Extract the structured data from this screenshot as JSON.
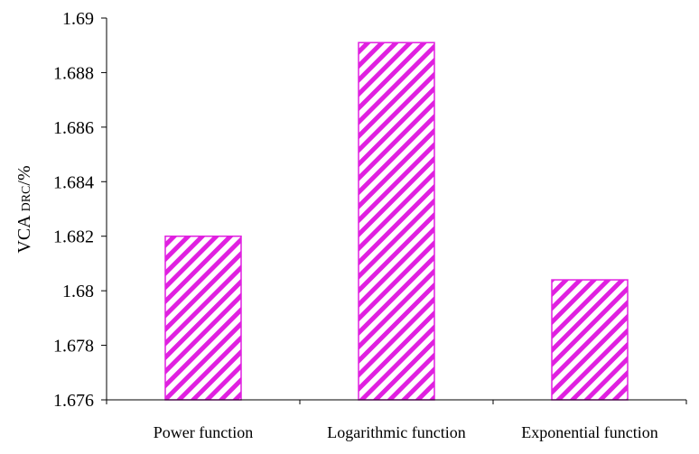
{
  "chart_data": {
    "type": "bar",
    "title": "",
    "xlabel": "",
    "ylabel": {
      "main": "VCA",
      "subscript": "DRC",
      "suffix": "/%"
    },
    "categories": [
      "Power function",
      "Logarithmic function",
      "Exponential function"
    ],
    "values": [
      1.682,
      1.6891,
      1.6804
    ],
    "ylim": [
      1.676,
      1.69
    ],
    "yticks": [
      "1.676",
      "1.678",
      "1.68",
      "1.682",
      "1.684",
      "1.686",
      "1.688",
      "1.69"
    ],
    "grid": false,
    "legend": "none",
    "bar_fill": "hatched diagonal",
    "bar_color": "#e020e0"
  }
}
